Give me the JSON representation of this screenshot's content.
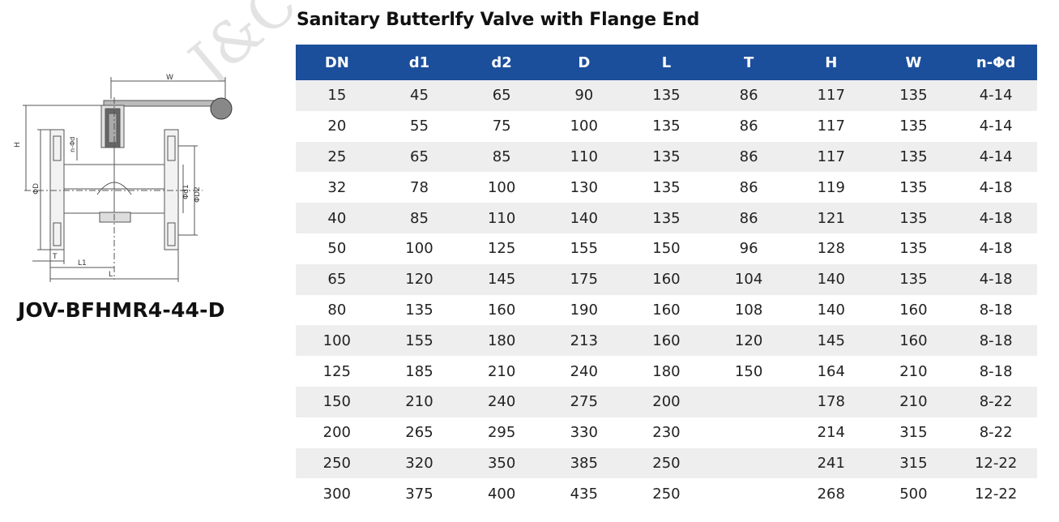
{
  "title": "Sanitary Butterlfy Valve with Flange End",
  "model": "JOV-BFHMR4-44-D",
  "watermark_text": "J&C",
  "drawing_labels": {
    "w": "W",
    "h": "H",
    "n_phi_d": "n-Φd",
    "phi_D": "ΦD",
    "phi_d1": "Φd1",
    "phi_D2": "ΦD2",
    "t": "T",
    "l1": "L1",
    "l": "L"
  },
  "colors": {
    "header_bg": "#1b4f9b",
    "row_stripe": "#eeeeee"
  },
  "table": {
    "headers": [
      "DN",
      "d1",
      "d2",
      "D",
      "L",
      "T",
      "H",
      "W",
      "n-Φd"
    ],
    "rows": [
      [
        "15",
        "45",
        "65",
        "90",
        "135",
        "86",
        "117",
        "135",
        "4-14"
      ],
      [
        "20",
        "55",
        "75",
        "100",
        "135",
        "86",
        "117",
        "135",
        "4-14"
      ],
      [
        "25",
        "65",
        "85",
        "110",
        "135",
        "86",
        "117",
        "135",
        "4-14"
      ],
      [
        "32",
        "78",
        "100",
        "130",
        "135",
        "86",
        "119",
        "135",
        "4-18"
      ],
      [
        "40",
        "85",
        "110",
        "140",
        "135",
        "86",
        "121",
        "135",
        "4-18"
      ],
      [
        "50",
        "100",
        "125",
        "155",
        "150",
        "96",
        "128",
        "135",
        "4-18"
      ],
      [
        "65",
        "120",
        "145",
        "175",
        "160",
        "104",
        "140",
        "135",
        "4-18"
      ],
      [
        "80",
        "135",
        "160",
        "190",
        "160",
        "108",
        "140",
        "160",
        "8-18"
      ],
      [
        "100",
        "155",
        "180",
        "213",
        "160",
        "120",
        "145",
        "160",
        "8-18"
      ],
      [
        "125",
        "185",
        "210",
        "240",
        "180",
        "150",
        "164",
        "210",
        "8-18"
      ],
      [
        "150",
        "210",
        "240",
        "275",
        "200",
        "",
        "178",
        "210",
        "8-22"
      ],
      [
        "200",
        "265",
        "295",
        "330",
        "230",
        "",
        "214",
        "315",
        "8-22"
      ],
      [
        "250",
        "320",
        "350",
        "385",
        "250",
        "",
        "241",
        "315",
        "12-22"
      ],
      [
        "300",
        "375",
        "400",
        "435",
        "250",
        "",
        "268",
        "500",
        "12-22"
      ]
    ]
  }
}
